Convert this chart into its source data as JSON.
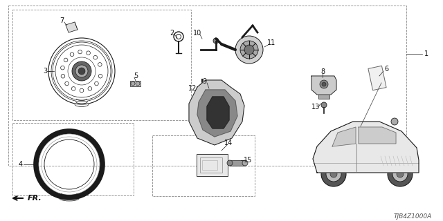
{
  "bg_color": "#ffffff",
  "line_color": "#1a1a1a",
  "diagram_code": "TJB4Z1000A",
  "label_color": "#111111",
  "dash_color": "#888888",
  "figsize": [
    6.4,
    3.2
  ],
  "dpi": 100
}
